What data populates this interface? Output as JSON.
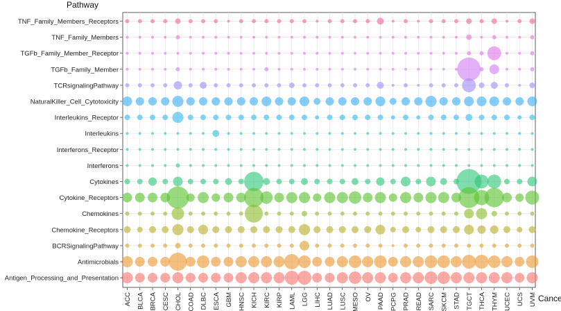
{
  "chart_data": {
    "type": "scatter",
    "subtype": "bubble",
    "ylabel": "Pathway",
    "xlabel": "Cancer",
    "grid": true,
    "legend": "none",
    "categories_x": [
      "ACC",
      "BLCA",
      "BRCA",
      "CESC",
      "CHOL",
      "COAD",
      "DLBC",
      "ESCA",
      "GBM",
      "HNSC",
      "KICH",
      "KIRC",
      "KIRP",
      "LAML",
      "LGG",
      "LIHC",
      "LUAD",
      "LUSC",
      "MESO",
      "OV",
      "PAAD",
      "PCPG",
      "PRAD",
      "READ",
      "SARC",
      "SKCM",
      "STAD",
      "TGCT",
      "THCA",
      "THYM",
      "UCEC",
      "UCS",
      "UVM"
    ],
    "categories_y": [
      "TNF_Family_Members_Receptors",
      "TNF_Family_Members",
      "TGFb_Family_Member_Receptor",
      "TGFb_Family_Member",
      "TCRsignalingPathway",
      "NaturalKiller_Cell_Cytotoxicity",
      "Interleukins_Receptor",
      "Interleukins",
      "Interferons_Receptor",
      "Interferons",
      "Cytokines",
      "Cytokine_Receptors",
      "Chemokines",
      "Chemokine_Receptors",
      "BCRSignalingPathway",
      "Antimicrobials",
      "Antigen_Processing_and_Presentation"
    ],
    "series": [
      {
        "name": "TNF_Family_Members_Receptors",
        "color": "#F564A3",
        "values": [
          3,
          3,
          3,
          3,
          4,
          3,
          3,
          3,
          2,
          3,
          3,
          3,
          3,
          3,
          3,
          2,
          3,
          3,
          3,
          3,
          5,
          2,
          3,
          2,
          3,
          3,
          3,
          4,
          3,
          4,
          2,
          3,
          4
        ]
      },
      {
        "name": "TNF_Family_Members",
        "color": "#EA6FD9",
        "values": [
          2,
          2,
          2,
          2,
          3,
          2,
          2,
          2,
          2,
          2,
          2,
          2,
          2,
          2,
          2,
          2,
          2,
          2,
          2,
          2,
          2,
          2,
          2,
          2,
          2,
          2,
          2,
          4,
          2,
          3,
          2,
          2,
          3
        ]
      },
      {
        "name": "TGFb_Family_Member_Receptor",
        "color": "#E076EC",
        "values": [
          2,
          2,
          2,
          2,
          2,
          2,
          2,
          2,
          2,
          2,
          2,
          2,
          2,
          2,
          2,
          2,
          2,
          2,
          2,
          2,
          2,
          2,
          2,
          2,
          2,
          2,
          2,
          3,
          3,
          10,
          2,
          2,
          3
        ]
      },
      {
        "name": "TGFb_Family_Member",
        "color": "#D480F5",
        "values": [
          2,
          2,
          2,
          2,
          3,
          2,
          2,
          2,
          2,
          2,
          2,
          3,
          2,
          2,
          2,
          2,
          2,
          2,
          2,
          2,
          2,
          2,
          2,
          2,
          2,
          2,
          2,
          17,
          3,
          7,
          2,
          2,
          3
        ]
      },
      {
        "name": "TCRsignalingPathway",
        "color": "#A58AF8",
        "values": [
          3,
          3,
          3,
          3,
          6,
          3,
          5,
          3,
          3,
          3,
          3,
          3,
          3,
          4,
          3,
          3,
          3,
          3,
          3,
          3,
          5,
          2,
          3,
          2,
          3,
          3,
          3,
          10,
          4,
          5,
          3,
          2,
          4
        ]
      },
      {
        "name": "NaturalKiller_Cell_Cytotoxicity",
        "color": "#3CB0F5",
        "values": [
          7,
          6,
          6,
          6,
          8,
          6,
          6,
          6,
          6,
          6,
          6,
          7,
          6,
          6,
          7,
          5,
          6,
          6,
          6,
          6,
          7,
          5,
          6,
          6,
          8,
          6,
          6,
          7,
          7,
          7,
          6,
          6,
          7
        ]
      },
      {
        "name": "Interleukins_Receptor",
        "color": "#36BCEB",
        "values": [
          4,
          4,
          4,
          4,
          8,
          4,
          4,
          4,
          4,
          4,
          4,
          4,
          4,
          4,
          4,
          3,
          4,
          4,
          4,
          4,
          4,
          3,
          4,
          3,
          4,
          4,
          4,
          5,
          4,
          4,
          4,
          3,
          4
        ]
      },
      {
        "name": "Interleukins",
        "color": "#2DC4D6",
        "values": [
          2,
          2,
          2,
          2,
          2,
          2,
          2,
          5,
          2,
          2,
          2,
          2,
          2,
          2,
          2,
          2,
          2,
          2,
          2,
          2,
          2,
          2,
          2,
          2,
          2,
          2,
          2,
          2,
          2,
          2,
          2,
          2,
          2
        ]
      },
      {
        "name": "Interferons_Receptor",
        "color": "#2CC5BE",
        "values": [
          2,
          2,
          2,
          2,
          2,
          2,
          2,
          2,
          2,
          2,
          2,
          2,
          2,
          2,
          2,
          2,
          2,
          2,
          2,
          2,
          2,
          2,
          2,
          2,
          2,
          2,
          2,
          2,
          2,
          2,
          2,
          2,
          2
        ]
      },
      {
        "name": "Interferons",
        "color": "#2EC5A2",
        "values": [
          2,
          2,
          2,
          2,
          3,
          2,
          2,
          2,
          2,
          2,
          2,
          2,
          2,
          2,
          2,
          2,
          2,
          2,
          2,
          2,
          2,
          2,
          2,
          2,
          2,
          2,
          2,
          2,
          2,
          2,
          2,
          2,
          2
        ]
      },
      {
        "name": "Cytokines",
        "color": "#2FC67A",
        "values": [
          4,
          4,
          6,
          4,
          7,
          4,
          4,
          4,
          5,
          4,
          14,
          5,
          4,
          4,
          5,
          4,
          4,
          4,
          5,
          4,
          6,
          4,
          7,
          4,
          7,
          5,
          4,
          18,
          10,
          10,
          4,
          4,
          7
        ]
      },
      {
        "name": "Cytokine_Receptors",
        "color": "#5CC430",
        "values": [
          7,
          7,
          7,
          7,
          16,
          6,
          8,
          6,
          7,
          7,
          14,
          9,
          7,
          8,
          8,
          6,
          8,
          8,
          9,
          7,
          8,
          6,
          8,
          7,
          8,
          8,
          7,
          15,
          11,
          14,
          7,
          6,
          10
        ]
      },
      {
        "name": "Chemokines",
        "color": "#8FBD2C",
        "values": [
          3,
          3,
          3,
          3,
          9,
          3,
          3,
          3,
          3,
          3,
          13,
          3,
          3,
          3,
          4,
          3,
          3,
          3,
          3,
          3,
          3,
          3,
          3,
          3,
          3,
          3,
          3,
          7,
          8,
          4,
          3,
          3,
          3
        ]
      },
      {
        "name": "Chemokine_Receptors",
        "color": "#B9B02C",
        "values": [
          5,
          4,
          5,
          5,
          8,
          5,
          7,
          5,
          5,
          5,
          5,
          5,
          5,
          5,
          8,
          5,
          5,
          5,
          5,
          5,
          7,
          4,
          5,
          4,
          5,
          5,
          5,
          7,
          6,
          6,
          5,
          4,
          5
        ]
      },
      {
        "name": "BCRSignalingPathway",
        "color": "#D6A52D",
        "values": [
          3,
          3,
          3,
          3,
          4,
          3,
          3,
          3,
          3,
          3,
          3,
          3,
          3,
          3,
          7,
          3,
          3,
          3,
          3,
          3,
          3,
          2,
          3,
          3,
          3,
          3,
          3,
          3,
          3,
          3,
          3,
          3,
          3
        ]
      },
      {
        "name": "Antimicrobials",
        "color": "#EE9A36",
        "values": [
          8,
          7,
          7,
          7,
          13,
          7,
          9,
          7,
          7,
          8,
          8,
          8,
          8,
          11,
          9,
          7,
          7,
          8,
          9,
          8,
          9,
          7,
          8,
          8,
          9,
          9,
          8,
          10,
          10,
          9,
          8,
          7,
          9
        ]
      },
      {
        "name": "Antigen_Processing_and_Presentation",
        "color": "#F8766D",
        "values": [
          8,
          7,
          7,
          7,
          8,
          7,
          7,
          7,
          7,
          8,
          8,
          8,
          8,
          10,
          10,
          7,
          7,
          8,
          9,
          8,
          8,
          7,
          8,
          8,
          9,
          9,
          8,
          8,
          8,
          8,
          8,
          7,
          8
        ]
      }
    ]
  }
}
